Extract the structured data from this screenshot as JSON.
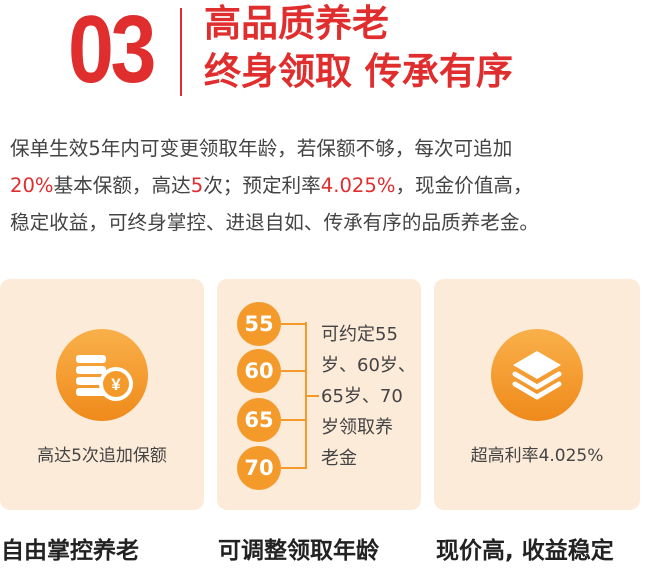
{
  "header": {
    "number": "03",
    "title_line1": "高品质养老",
    "title_line2": "终身领取 传承有序"
  },
  "description": {
    "line1": "保单生效5年内可变更领取年龄，若保额不够，每次可追加",
    "line2_hl1": "20%",
    "line2_t1": "基本保额，高达",
    "line2_hl2": "5",
    "line2_t2": "次；预定利率",
    "line2_hl3": "4.025%",
    "line2_t3": "，现金价值高，",
    "line3": "稳定收益，可终身掌控、进退自如、传承有序的品质养老金。"
  },
  "cards": [
    {
      "icon": "coins-yen-icon",
      "symbol": "¥",
      "label": "高达5次追加保额"
    },
    {
      "ages": [
        "55",
        "60",
        "65",
        "70"
      ],
      "text_lines": [
        "可约定55",
        "岁、60岁、",
        "65岁、70",
        "岁领取养",
        "老金"
      ]
    },
    {
      "icon": "layers-icon",
      "label": "超高利率4.025%"
    }
  ],
  "bottom": [
    "自由掌控养老",
    "可调整领取年龄",
    "现价高, 收益稳定"
  ],
  "colors": {
    "accent": "#e02d2d",
    "orange": "#f39a2a",
    "card_bg": "#fdebd9"
  }
}
